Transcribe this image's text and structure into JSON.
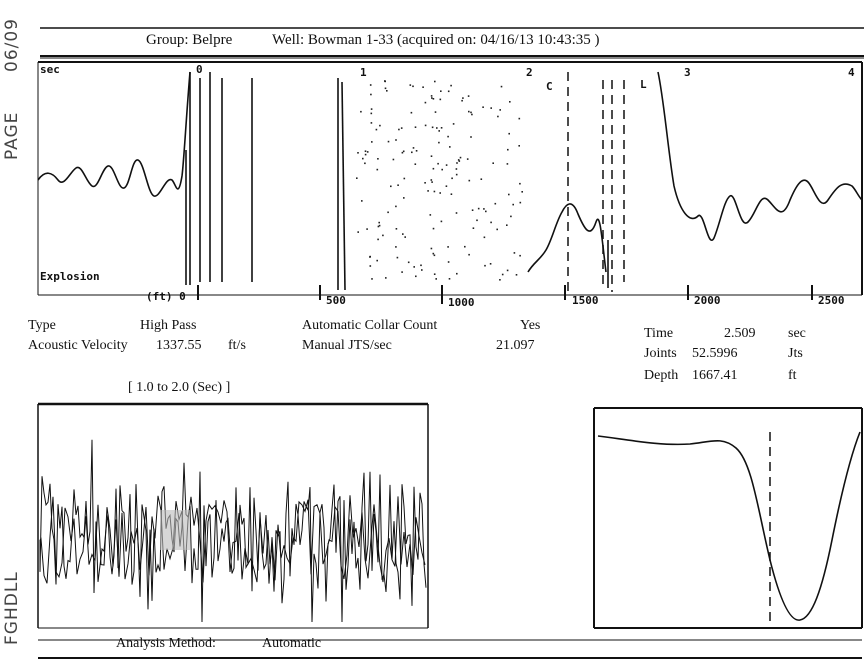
{
  "side": {
    "page_number": "06/09",
    "page_label": "PAGE",
    "fax_code": "FGHDLL"
  },
  "header": {
    "group": "Group: Belpre",
    "well": "Well: Bowman 1-33 (acquired on: 04/16/13 10:43:35 )"
  },
  "waveform": {
    "top_ticks": [
      "sec",
      "0",
      "1",
      "2",
      "C",
      "L",
      "3",
      "4"
    ],
    "explosion_label": "Explosion",
    "bottom_ticks": [
      "(ft) 0",
      "500",
      "1000",
      "1500",
      "2000",
      "2500"
    ]
  },
  "params": {
    "type_label": "Type",
    "type_value": "High Pass",
    "velocity_label": "Acoustic Velocity",
    "velocity_value": "1337.55",
    "velocity_unit": "ft/s",
    "collar_label": "Automatic Collar Count",
    "collar_value": "Yes",
    "jts_label": "Manual JTS/sec",
    "jts_value": "21.097"
  },
  "readout": {
    "time_label": "Time",
    "time_value": "2.509",
    "time_unit": "sec",
    "joints_label": "Joints",
    "joints_value": "52.5996",
    "joints_unit": "Jts",
    "depth_label": "Depth",
    "depth_value": "1667.41",
    "depth_unit": "ft"
  },
  "range_label": "[ 1.0  to  2.0 (Sec) ]",
  "analysis": {
    "label": "Analysis Method:",
    "value": "Automatic"
  }
}
